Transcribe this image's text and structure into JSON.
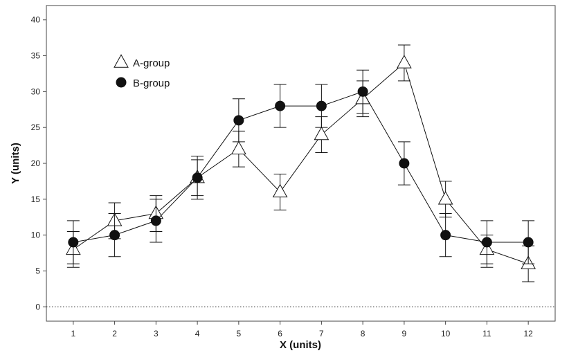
{
  "chart_data": {
    "type": "line",
    "xlabel": "X (units)",
    "ylabel": "Y (units)",
    "x": [
      1,
      2,
      3,
      4,
      5,
      6,
      7,
      8,
      9,
      10,
      11,
      12
    ],
    "xlim": [
      0.35,
      12.65
    ],
    "ylim": [
      -2,
      42
    ],
    "yticks": [
      0,
      5,
      10,
      15,
      20,
      25,
      30,
      35,
      40
    ],
    "reference_line": {
      "y": 0,
      "style": "dotted"
    },
    "grid": false,
    "legend_position": "top-left",
    "series": [
      {
        "name": "A-group",
        "marker": "open-triangle",
        "values": [
          8,
          12,
          13,
          18,
          22,
          16,
          24,
          29,
          34,
          15,
          8,
          6
        ],
        "err_lower": [
          6,
          9.5,
          10.5,
          15.5,
          19.5,
          13.5,
          21.5,
          26.5,
          31.5,
          12.5,
          6,
          3.5
        ],
        "err_upper": [
          10.5,
          14.5,
          15.5,
          20.5,
          24.5,
          18.5,
          26.5,
          31.5,
          36.5,
          17.5,
          10,
          8.5
        ]
      },
      {
        "name": "B-group",
        "marker": "filled-circle",
        "values": [
          9,
          10,
          12,
          18,
          26,
          28,
          28,
          30,
          20,
          10,
          9,
          9
        ],
        "err_lower": [
          5.5,
          7,
          9,
          15,
          23,
          25,
          25,
          27,
          17,
          7,
          5.5,
          6
        ],
        "err_upper": [
          12,
          13,
          15,
          21,
          29,
          31,
          31,
          33,
          23,
          13,
          12,
          12
        ]
      }
    ]
  }
}
